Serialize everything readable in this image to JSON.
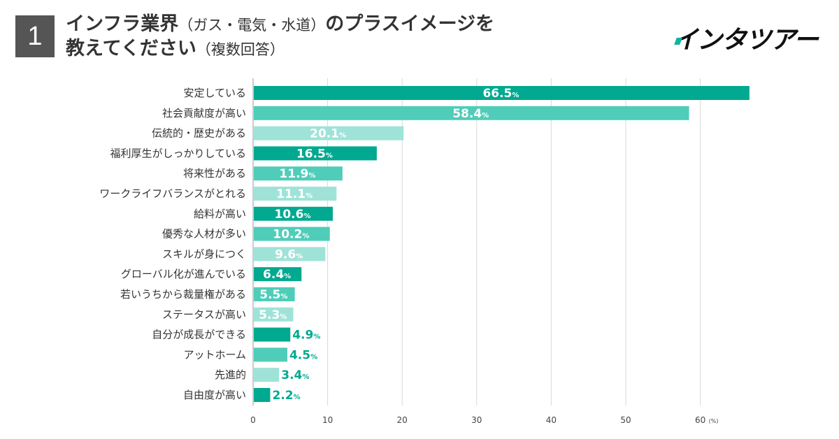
{
  "header": {
    "number": "1",
    "title_line1_main": "インフラ業界",
    "title_line1_paren": "（ガス・電気・水道）",
    "title_line1_rest": "のプラスイメージを",
    "title_line2_main": "教えてください",
    "title_line2_paren": "（複数回答）"
  },
  "logo": {
    "text": "インタツアー"
  },
  "colors": {
    "dark": "#00a98f",
    "mid": "#4fcdb9",
    "light": "#9fe3d8",
    "grid": "#d9d9d9",
    "badge": "#555555"
  },
  "chart_data": {
    "type": "bar",
    "orientation": "horizontal",
    "title": "インフラ業界（ガス・電気・水道）のプラスイメージを教えてください（複数回答）",
    "unit": "(%)",
    "xlim": [
      0,
      66.5
    ],
    "xticks": [
      0,
      10,
      20,
      30,
      40,
      50,
      60
    ],
    "categories": [
      "安定している",
      "社会貢献度が高い",
      "伝統的・歴史がある",
      "福利厚生がしっかりしている",
      "将来性がある",
      "ワークライフバランスがとれる",
      "給料が高い",
      "優秀な人材が多い",
      "スキルが身につく",
      "グローバル化が進んでいる",
      "若いうちから裁量権がある",
      "ステータスが高い",
      "自分が成長ができる",
      "アットホーム",
      "先進的",
      "自由度が高い"
    ],
    "values": [
      66.5,
      58.4,
      20.1,
      16.5,
      11.9,
      11.1,
      10.6,
      10.2,
      9.6,
      6.4,
      5.5,
      5.3,
      4.9,
      4.5,
      3.4,
      2.2
    ],
    "value_labels": [
      "66.5",
      "58.4",
      "20.1",
      "16.5",
      "11.9",
      "11.1",
      "10.6",
      "10.2",
      "9.6",
      "6.4",
      "5.5",
      "5.3",
      "4.9",
      "4.5",
      "3.4",
      "2.2"
    ],
    "shades": [
      "dark",
      "mid",
      "light",
      "dark",
      "mid",
      "light",
      "dark",
      "mid",
      "light",
      "dark",
      "mid",
      "light",
      "dark",
      "mid",
      "light",
      "dark"
    ],
    "percent_sign": "%"
  }
}
